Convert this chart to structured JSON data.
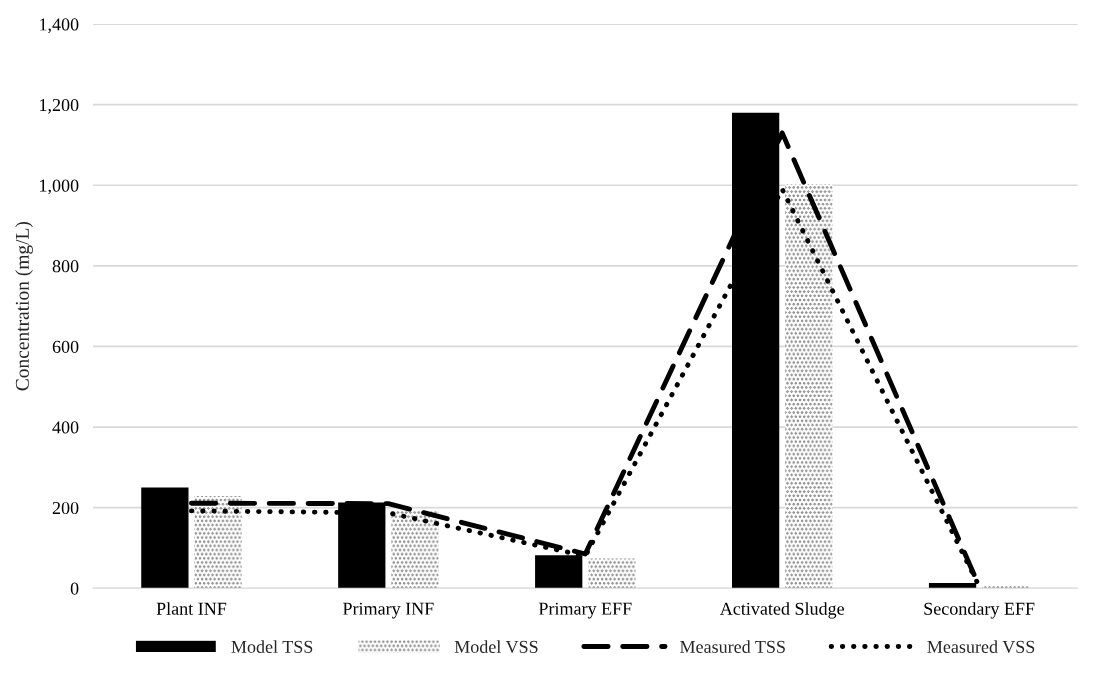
{
  "chart_data": {
    "type": "bar",
    "ylabel": "Concentration (mg/L)",
    "categories": [
      "Plant INF",
      "Primary INF",
      "Primary EFF",
      "Activated Sludge",
      "Secondary EFF"
    ],
    "series": [
      {
        "name": "Model TSS",
        "type": "bar",
        "color": "#000000",
        "values": [
          250,
          213,
          82,
          1180,
          13
        ]
      },
      {
        "name": "Model VSS",
        "type": "bar",
        "color": "#808080",
        "values": [
          229,
          193,
          74,
          1003,
          6
        ]
      },
      {
        "name": "Measured TSS",
        "type": "line",
        "line_style": "dashed",
        "color": "#000000",
        "values": [
          211,
          210,
          85,
          1130,
          5
        ]
      },
      {
        "name": "Measured VSS",
        "type": "line",
        "line_style": "dotted",
        "color": "#000000",
        "values": [
          192,
          187,
          80,
          990,
          5
        ]
      }
    ],
    "ylim": [
      0,
      1400
    ],
    "yticks": [
      {
        "value": 0,
        "label": "0"
      },
      {
        "value": 200,
        "label": "200"
      },
      {
        "value": 400,
        "label": "400"
      },
      {
        "value": 600,
        "label": "600"
      },
      {
        "value": 800,
        "label": "800"
      },
      {
        "value": 1000,
        "label": "1,000"
      },
      {
        "value": 1200,
        "label": "1,200"
      },
      {
        "value": 1400,
        "label": "1,400"
      }
    ],
    "grid": "y",
    "legend": "bottom"
  }
}
